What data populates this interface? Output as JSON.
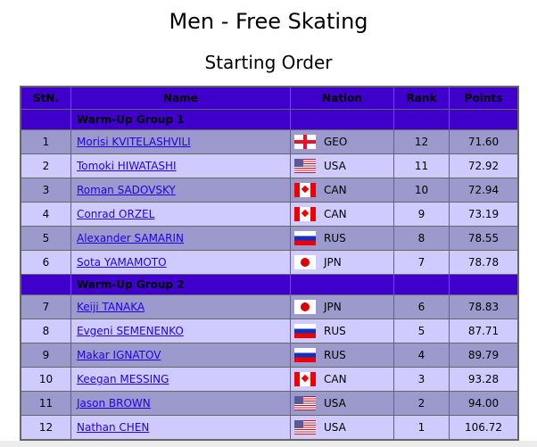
{
  "title": "Men - Free Skating",
  "subtitle": "Starting Order",
  "columns": [
    "StN.",
    "Name",
    "Nation",
    "Rank",
    "Points"
  ],
  "groups": [
    {
      "label": "Warm-Up Group 1",
      "rows": [
        {
          "stn": "1",
          "name": "Morisi KVITELASHVILI",
          "nation": "GEO",
          "rank": "12",
          "points": "71.60"
        },
        {
          "stn": "2",
          "name": "Tomoki HIWATASHI",
          "nation": "USA",
          "rank": "11",
          "points": "72.92"
        },
        {
          "stn": "3",
          "name": "Roman SADOVSKY",
          "nation": "CAN",
          "rank": "10",
          "points": "72.94"
        },
        {
          "stn": "4",
          "name": "Conrad ORZEL",
          "nation": "CAN",
          "rank": "9",
          "points": "73.19"
        },
        {
          "stn": "5",
          "name": "Alexander SAMARIN",
          "nation": "RUS",
          "rank": "8",
          "points": "78.55"
        },
        {
          "stn": "6",
          "name": "Sota YAMAMOTO",
          "nation": "JPN",
          "rank": "7",
          "points": "78.78"
        }
      ]
    },
    {
      "label": "Warm-Up Group 2",
      "rows": [
        {
          "stn": "7",
          "name": "Keiji TANAKA",
          "nation": "JPN",
          "rank": "6",
          "points": "78.83"
        },
        {
          "stn": "8",
          "name": "Evgeni SEMENENKO",
          "nation": "RUS",
          "rank": "5",
          "points": "87.71"
        },
        {
          "stn": "9",
          "name": "Makar IGNATOV",
          "nation": "RUS",
          "rank": "4",
          "points": "89.79"
        },
        {
          "stn": "10",
          "name": "Keegan MESSING",
          "nation": "CAN",
          "rank": "3",
          "points": "93.28"
        },
        {
          "stn": "11",
          "name": "Jason BROWN",
          "nation": "USA",
          "rank": "2",
          "points": "94.00"
        },
        {
          "stn": "12",
          "name": "Nathan CHEN",
          "nation": "USA",
          "rank": "1",
          "points": "106.72"
        }
      ]
    }
  ],
  "colors": {
    "header": "#3f00cc",
    "row_odd": "#9c99cc",
    "row_even": "#cfcbff",
    "link": "#2200ee"
  }
}
